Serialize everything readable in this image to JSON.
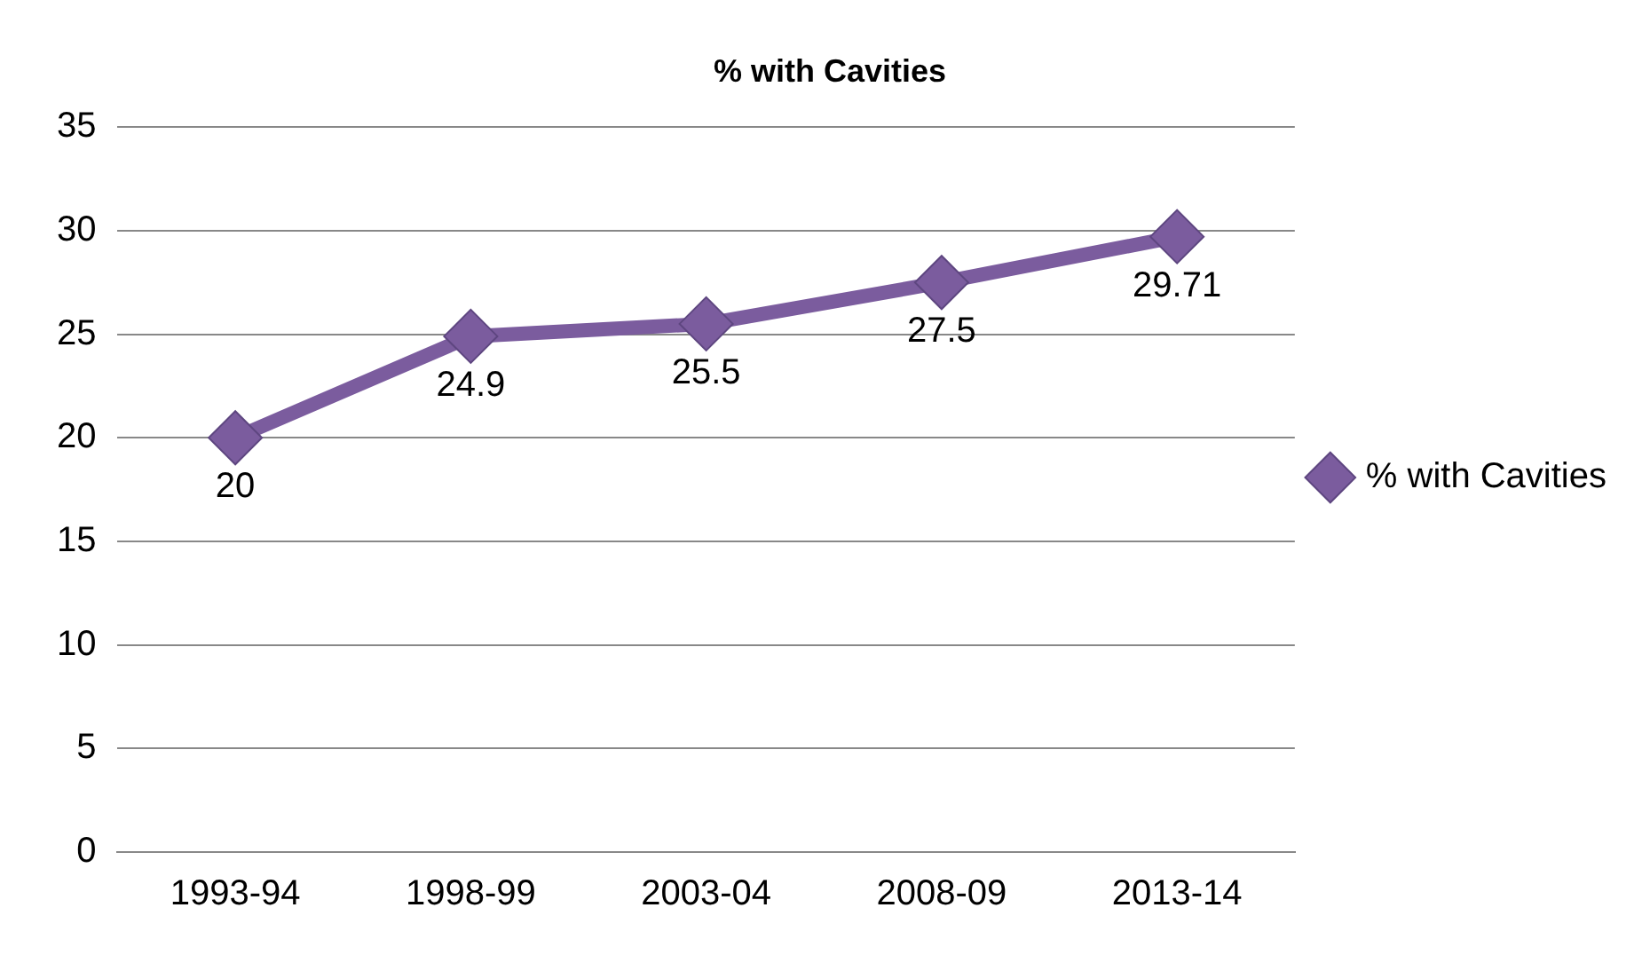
{
  "chart_data": {
    "type": "line",
    "title": "% with Cavities",
    "categories": [
      "1993-94",
      "1998-99",
      "2003-04",
      "2008-09",
      "2013-14"
    ],
    "series": [
      {
        "name": "% with Cavities",
        "color": "#7b5c9e",
        "values": [
          20,
          24.9,
          25.5,
          27.5,
          29.71
        ]
      }
    ],
    "ylim": [
      0,
      35
    ],
    "yticks": [
      0,
      5,
      10,
      15,
      20,
      25,
      30,
      35
    ],
    "grid": "y",
    "legend": "right",
    "marker": "diamond",
    "line_style": "solid",
    "data_labels": true
  }
}
